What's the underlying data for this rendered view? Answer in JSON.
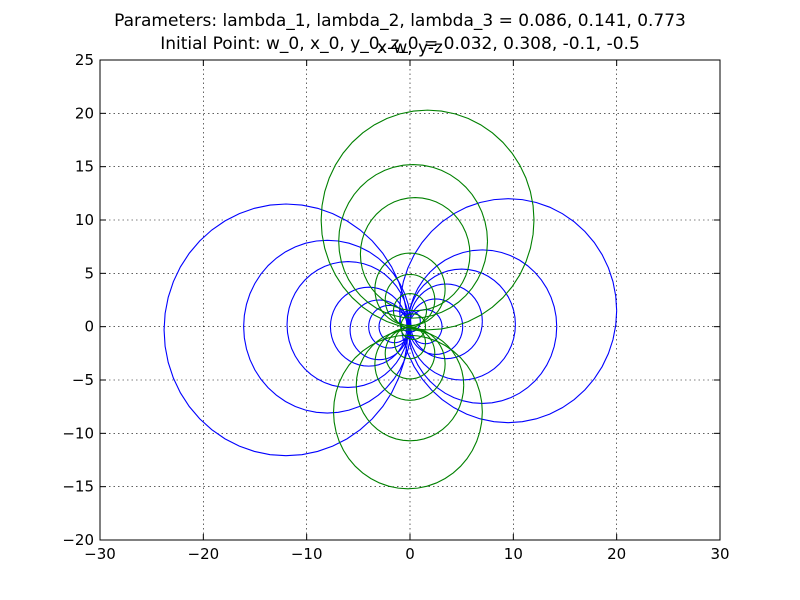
{
  "chart_data": {
    "type": "line",
    "title_line1": "Parameters: lambda_1, lambda_2, lambda_3 = 0.086, 0.141, 0.773",
    "title_line2": "Initial Point: w_0, x_0, y_0, z_0 = 0.032, 0.308, -0.1, -0.5",
    "axes_title": "x-w, y-z",
    "xlim": [
      -30,
      30
    ],
    "ylim": [
      -20,
      25
    ],
    "x_ticks": [
      -30,
      -20,
      -10,
      0,
      10,
      20,
      30
    ],
    "y_ticks": [
      -20,
      -15,
      -10,
      -5,
      0,
      5,
      10,
      15,
      20,
      25
    ],
    "x_tick_labels": [
      "−30",
      "−20",
      "−10",
      "0",
      "10",
      "20",
      "30"
    ],
    "y_tick_labels": [
      "−20",
      "−15",
      "−10",
      "−5",
      "0",
      "5",
      "10",
      "15",
      "20",
      "25"
    ],
    "grid": true,
    "series": [
      {
        "color": "#0000ff",
        "loops": [
          {
            "cx": -12,
            "cy": -0.3,
            "r": 11.8
          },
          {
            "cx": -8,
            "cy": 0,
            "r": 8.1
          },
          {
            "cx": -6,
            "cy": 0.2,
            "r": 5.9
          },
          {
            "cx": -4,
            "cy": 0,
            "r": 3.7
          },
          {
            "cx": -3,
            "cy": -0.3,
            "r": 2.8
          },
          {
            "cx": -2,
            "cy": 0,
            "r": 2
          },
          {
            "cx": -1.5,
            "cy": 0,
            "r": 1.5
          },
          {
            "cx": 9.5,
            "cy": 1.5,
            "r": 10.5
          },
          {
            "cx": 7,
            "cy": 0,
            "r": 7.2
          },
          {
            "cx": 5,
            "cy": 0.2,
            "r": 5.2
          },
          {
            "cx": 3.5,
            "cy": 0.5,
            "r": 3.5
          },
          {
            "cx": 2.5,
            "cy": 0,
            "r": 2.6
          },
          {
            "cx": 1.5,
            "cy": 0,
            "r": 1.6
          },
          {
            "cx": 0,
            "cy": 0.5,
            "r": 1
          }
        ]
      },
      {
        "color": "#008000",
        "loops": [
          {
            "cx": 1.7,
            "cy": 10,
            "r": 10.3
          },
          {
            "cx": 0.3,
            "cy": 8,
            "r": 7.2
          },
          {
            "cx": 0.5,
            "cy": 6.8,
            "r": 5.3
          },
          {
            "cx": 0,
            "cy": 3.5,
            "r": 3.4
          },
          {
            "cx": 0,
            "cy": 2.5,
            "r": 2.4
          },
          {
            "cx": 0,
            "cy": 1.5,
            "r": 1.6
          },
          {
            "cx": -0.2,
            "cy": -8,
            "r": 7.2
          },
          {
            "cx": 0,
            "cy": -5.5,
            "r": 5.2
          },
          {
            "cx": 0,
            "cy": -3.5,
            "r": 3.4
          },
          {
            "cx": 0,
            "cy": -2.5,
            "r": 2.4
          },
          {
            "cx": 0,
            "cy": -1.5,
            "r": 1.5
          },
          {
            "cx": 0.3,
            "cy": 0,
            "r": 1.2
          }
        ]
      }
    ]
  }
}
